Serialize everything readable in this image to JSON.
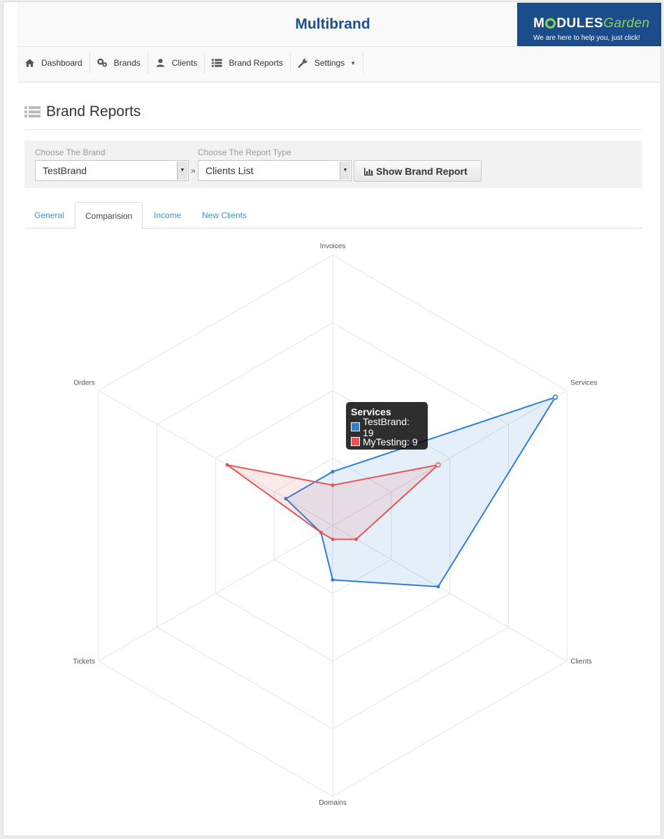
{
  "app": {
    "title": "Multibrand",
    "logo": {
      "brand_left": "M",
      "brand_right": "DULES",
      "brand_garden": "Garden",
      "tagline": "We are here to help you, just click!"
    }
  },
  "nav": {
    "items": [
      {
        "label": "Dashboard",
        "icon": "home-icon"
      },
      {
        "label": "Brands",
        "icon": "cogs-icon"
      },
      {
        "label": "Clients",
        "icon": "user-icon"
      },
      {
        "label": "Brand Reports",
        "icon": "list-icon"
      },
      {
        "label": "Settings",
        "icon": "wrench-icon",
        "dropdown": true
      }
    ]
  },
  "page": {
    "title": "Brand Reports",
    "icon": "list-icon"
  },
  "filters": {
    "brand_label": "Choose The Brand",
    "brand_value": "TestBrand",
    "separator": "»",
    "report_label": "Choose The Report Type",
    "report_value": "Clients List",
    "show_button": "Show Brand Report"
  },
  "tabs": [
    {
      "label": "General",
      "active": false
    },
    {
      "label": "Comparision",
      "active": true
    },
    {
      "label": "Income",
      "active": false
    },
    {
      "label": "New Clients",
      "active": false
    }
  ],
  "chart_data": {
    "type": "radar",
    "axes": [
      "Invoices",
      "Services",
      "Clients",
      "Domains",
      "Tickets",
      "Orders"
    ],
    "rmax": 20,
    "rings": 4,
    "series": [
      {
        "name": "TestBrand",
        "values": [
          4,
          19,
          9,
          4,
          1,
          4
        ],
        "color": "#2d7fd6",
        "fill": "rgba(45,127,214,0.12)"
      },
      {
        "name": "MyTesting",
        "values": [
          3,
          9,
          2,
          1,
          1,
          9
        ],
        "color": "#e85454",
        "fill": "rgba(232,84,84,0.12)"
      }
    ],
    "tooltip": {
      "title": "Services",
      "rows": [
        {
          "text": "TestBrand: 19",
          "color": "#2d7fd6"
        },
        {
          "text": "MyTesting: 9",
          "color": "#e85454"
        }
      ]
    }
  }
}
